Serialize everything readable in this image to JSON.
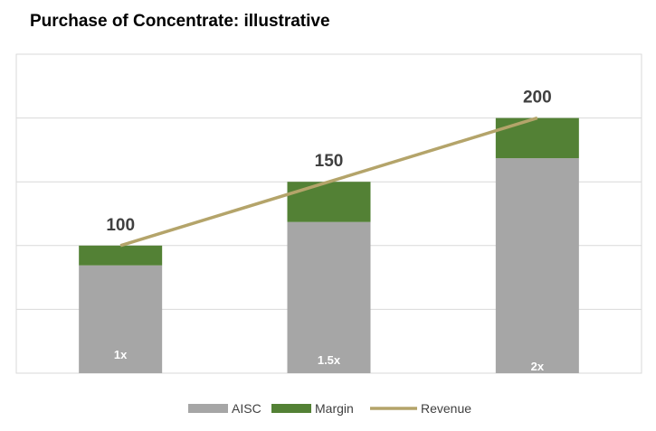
{
  "chart_data": {
    "type": "bar",
    "stacked": true,
    "title": "Purchase of Concentrate: illustrative",
    "categories": [
      "1x",
      "1.5x",
      "2x"
    ],
    "series": [
      {
        "name": "AISC",
        "type": "bar",
        "color": "#a6a6a6",
        "values": [
          84.5,
          118.5,
          168.5
        ]
      },
      {
        "name": "Margin",
        "type": "bar",
        "color": "#538135",
        "values": [
          15.5,
          31.5,
          31.5
        ]
      },
      {
        "name": "Revenue",
        "type": "line",
        "color": "#b4a46a",
        "values": [
          100,
          150,
          200
        ]
      }
    ],
    "data_labels": [
      "100",
      "150",
      "200"
    ],
    "ylim": [
      0,
      250
    ],
    "gridlines": true,
    "legend": "bottom",
    "xlabel": "",
    "ylabel": ""
  }
}
